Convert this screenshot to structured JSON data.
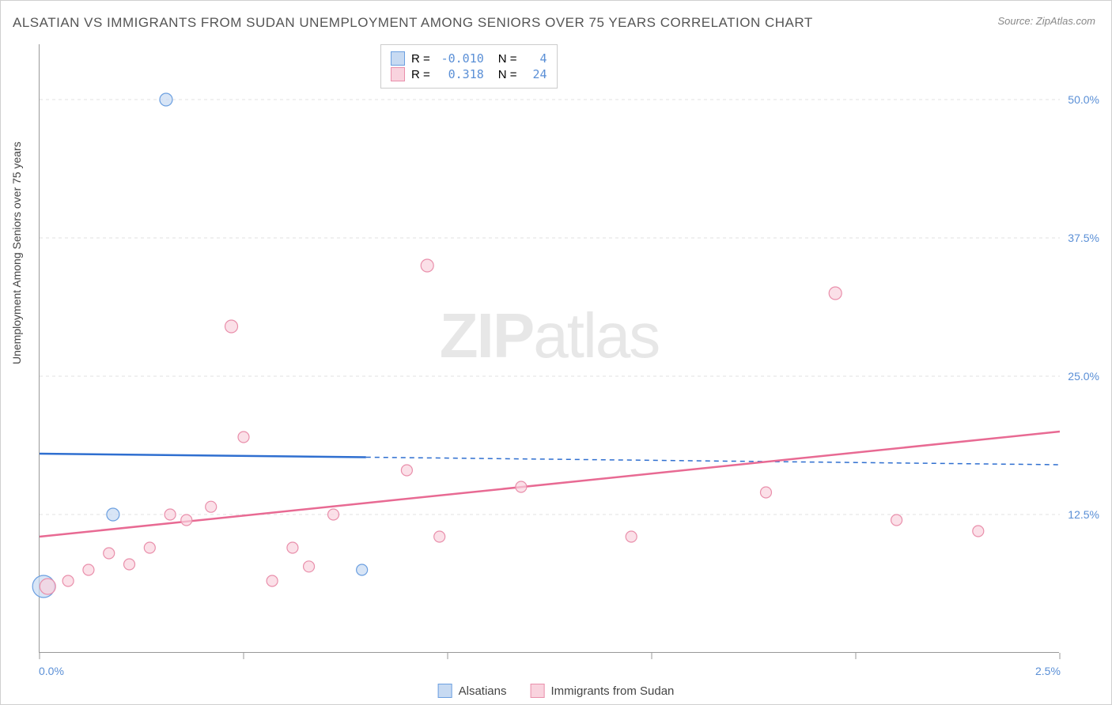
{
  "title": "ALSATIAN VS IMMIGRANTS FROM SUDAN UNEMPLOYMENT AMONG SENIORS OVER 75 YEARS CORRELATION CHART",
  "source": "Source: ZipAtlas.com",
  "ylabel": "Unemployment Among Seniors over 75 years",
  "watermark_bold": "ZIP",
  "watermark_light": "atlas",
  "chart": {
    "type": "scatter",
    "xlim": [
      0.0,
      2.5
    ],
    "ylim": [
      0.0,
      55.0
    ],
    "xticks": [
      0.0,
      0.5,
      1.0,
      1.5,
      2.0,
      2.5
    ],
    "xtick_labels_shown": {
      "0.0": "0.0%",
      "2.5": "2.5%"
    },
    "yticks": [
      12.5,
      25.0,
      37.5,
      50.0
    ],
    "ytick_labels": {
      "12.5": "12.5%",
      "25.0": "25.0%",
      "37.5": "37.5%",
      "50.0": "50.0%"
    },
    "grid_color": "#e0e0e0",
    "background_color": "#ffffff",
    "series": [
      {
        "name": "Alsatians",
        "legend_label": "Alsatians",
        "marker_fill": "#c7daf2",
        "marker_stroke": "#6b9fe0",
        "line_color": "#2f6fd0",
        "r_value": "-0.010",
        "n_value": "4",
        "points": [
          {
            "x": 0.01,
            "y": 6.0,
            "r": 14
          },
          {
            "x": 0.18,
            "y": 12.5,
            "r": 8
          },
          {
            "x": 0.31,
            "y": 50.0,
            "r": 8
          },
          {
            "x": 0.79,
            "y": 7.5,
            "r": 7
          }
        ],
        "trend": {
          "x1": 0.0,
          "y1": 18.0,
          "x2": 2.5,
          "y2": 17.0,
          "solid_until_x": 0.8
        }
      },
      {
        "name": "Immigrants from Sudan",
        "legend_label": "Immigrants from Sudan",
        "marker_fill": "#f9d3de",
        "marker_stroke": "#e98fab",
        "line_color": "#e86a93",
        "r_value": "0.318",
        "n_value": "24",
        "points": [
          {
            "x": 0.02,
            "y": 6.0,
            "r": 10
          },
          {
            "x": 0.07,
            "y": 6.5,
            "r": 7
          },
          {
            "x": 0.12,
            "y": 7.5,
            "r": 7
          },
          {
            "x": 0.17,
            "y": 9.0,
            "r": 7
          },
          {
            "x": 0.22,
            "y": 8.0,
            "r": 7
          },
          {
            "x": 0.27,
            "y": 9.5,
            "r": 7
          },
          {
            "x": 0.32,
            "y": 12.5,
            "r": 7
          },
          {
            "x": 0.36,
            "y": 12.0,
            "r": 7
          },
          {
            "x": 0.42,
            "y": 13.2,
            "r": 7
          },
          {
            "x": 0.47,
            "y": 29.5,
            "r": 8
          },
          {
            "x": 0.5,
            "y": 19.5,
            "r": 7
          },
          {
            "x": 0.57,
            "y": 6.5,
            "r": 7
          },
          {
            "x": 0.62,
            "y": 9.5,
            "r": 7
          },
          {
            "x": 0.66,
            "y": 7.8,
            "r": 7
          },
          {
            "x": 0.72,
            "y": 12.5,
            "r": 7
          },
          {
            "x": 0.9,
            "y": 16.5,
            "r": 7
          },
          {
            "x": 0.95,
            "y": 35.0,
            "r": 8
          },
          {
            "x": 0.98,
            "y": 10.5,
            "r": 7
          },
          {
            "x": 1.18,
            "y": 15.0,
            "r": 7
          },
          {
            "x": 1.45,
            "y": 10.5,
            "r": 7
          },
          {
            "x": 1.78,
            "y": 14.5,
            "r": 7
          },
          {
            "x": 1.95,
            "y": 32.5,
            "r": 8
          },
          {
            "x": 2.1,
            "y": 12.0,
            "r": 7
          },
          {
            "x": 2.3,
            "y": 11.0,
            "r": 7
          }
        ],
        "trend": {
          "x1": 0.0,
          "y1": 10.5,
          "x2": 2.5,
          "y2": 20.0,
          "solid_until_x": 2.5
        }
      }
    ]
  },
  "legend_top_labels": {
    "r": "R =",
    "n": "N ="
  }
}
